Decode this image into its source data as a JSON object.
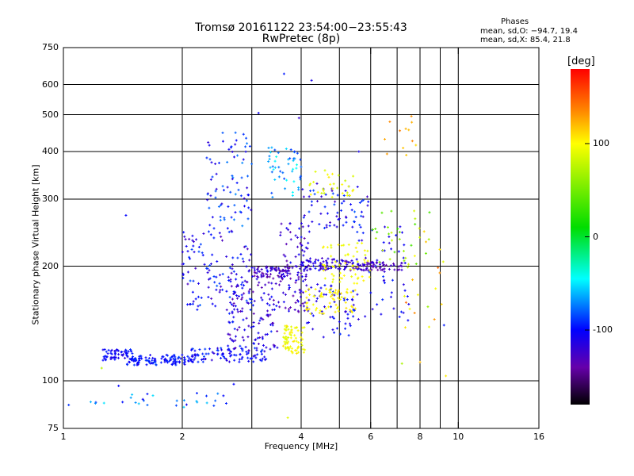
{
  "chart_data": {
    "type": "scatter",
    "title": "Tromsø 20161122 23:54:00−23:55:43",
    "subtitle": "RwPretec (8p)",
    "xlabel": "Frequency [MHz]",
    "ylabel": "Stationary phase Virtual Height [km]",
    "x_scale": "log",
    "y_scale": "log",
    "xlim": [
      1,
      16
    ],
    "ylim": [
      75,
      750
    ],
    "x_ticks": [
      1,
      2,
      4,
      6,
      8,
      10,
      16
    ],
    "x_minor_ticks": [
      3,
      5,
      7,
      9
    ],
    "y_ticks": [
      75,
      100,
      200,
      300,
      400,
      500,
      600,
      750
    ],
    "grid": true,
    "phase_info": {
      "heading": "Phases",
      "line_o": "mean, sd,O: −94.7, 19.4",
      "line_x": "mean, sd,X:  85.4, 21.8"
    },
    "colorbar": {
      "label": "[deg]",
      "range": [
        -180,
        180
      ],
      "ticks": [
        100,
        0,
        -100
      ],
      "colors": [
        "#ff0000",
        "#ff8800",
        "#ffff00",
        "#00dd00",
        "#00ffff",
        "#0000ff",
        "#6600aa",
        "#000000"
      ]
    },
    "clusters": [
      {
        "x": [
          1.03,
          2.62
        ],
        "y": [
          85,
          93
        ],
        "phase": [
          -110,
          -50
        ],
        "n": 30
      },
      {
        "x": [
          1.25,
          1.5
        ],
        "y": [
          113,
          121
        ],
        "phase": [
          -115,
          -90
        ],
        "n": 60
      },
      {
        "x": [
          1.45,
          2.2
        ],
        "y": [
          110,
          117
        ],
        "phase": [
          -110,
          -85
        ],
        "n": 120
      },
      {
        "x": [
          2.1,
          3.3
        ],
        "y": [
          112,
          122
        ],
        "phase": [
          -120,
          -85
        ],
        "n": 90
      },
      {
        "x": [
          2.0,
          3.0
        ],
        "y": [
          150,
          250
        ],
        "phase": [
          -130,
          -80
        ],
        "n": 120
      },
      {
        "x": [
          2.3,
          3.0
        ],
        "y": [
          250,
          450
        ],
        "phase": [
          -120,
          -70
        ],
        "n": 80
      },
      {
        "x": [
          2.6,
          3.5
        ],
        "y": [
          120,
          200
        ],
        "phase": [
          -140,
          -90
        ],
        "n": 140
      },
      {
        "x": [
          3.0,
          3.9
        ],
        "y": [
          185,
          200
        ],
        "phase": [
          -150,
          -110
        ],
        "n": 70
      },
      {
        "x": [
          3.3,
          4.0
        ],
        "y": [
          300,
          410
        ],
        "phase": [
          -90,
          -40
        ],
        "n": 50
      },
      {
        "x": [
          3.5,
          4.2
        ],
        "y": [
          150,
          260
        ],
        "phase": [
          -140,
          -100
        ],
        "n": 100
      },
      {
        "x": [
          4.0,
          5.6
        ],
        "y": [
          195,
          210
        ],
        "phase": [
          -140,
          -100
        ],
        "n": 90
      },
      {
        "x": [
          4.0,
          6.0
        ],
        "y": [
          250,
          330
        ],
        "phase": [
          -130,
          -80
        ],
        "n": 70
      },
      {
        "x": [
          4.1,
          5.5
        ],
        "y": [
          130,
          180
        ],
        "phase": [
          -120,
          -90
        ],
        "n": 60
      },
      {
        "x": [
          5.5,
          7.2
        ],
        "y": [
          195,
          205
        ],
        "phase": [
          -140,
          -120
        ],
        "n": 60
      },
      {
        "x": [
          5.5,
          7.5
        ],
        "y": [
          140,
          260
        ],
        "phase": [
          -120,
          -90
        ],
        "n": 50
      },
      {
        "x": [
          3.6,
          4.1
        ],
        "y": [
          118,
          140
        ],
        "phase": [
          85,
          110
        ],
        "n": 70
      },
      {
        "x": [
          4.1,
          5.5
        ],
        "y": [
          150,
          175
        ],
        "phase": [
          95,
          110
        ],
        "n": 70
      },
      {
        "x": [
          4.5,
          6.0
        ],
        "y": [
          180,
          230
        ],
        "phase": [
          90,
          105
        ],
        "n": 60
      },
      {
        "x": [
          4.2,
          5.5
        ],
        "y": [
          300,
          360
        ],
        "phase": [
          80,
          110
        ],
        "n": 30
      },
      {
        "x": [
          6.0,
          8.5
        ],
        "y": [
          200,
          290
        ],
        "phase": [
          30,
          90
        ],
        "n": 30
      },
      {
        "x": [
          7.2,
          9.3
        ],
        "y": [
          130,
          250
        ],
        "phase": [
          60,
          150
        ],
        "n": 20
      },
      {
        "x": [
          6.5,
          8.0
        ],
        "y": [
          380,
          500
        ],
        "phase": [
          110,
          140
        ],
        "n": 12
      }
    ],
    "points": [
      {
        "x": 3.62,
        "y": 640,
        "phase": -95
      },
      {
        "x": 4.25,
        "y": 615,
        "phase": -110
      },
      {
        "x": 3.12,
        "y": 505,
        "phase": -105
      },
      {
        "x": 3.95,
        "y": 490,
        "phase": -120
      },
      {
        "x": 1.44,
        "y": 272,
        "phase": -100
      },
      {
        "x": 3.85,
        "y": 400,
        "phase": -95
      },
      {
        "x": 3.7,
        "y": 80,
        "phase": 90
      },
      {
        "x": 5.6,
        "y": 400,
        "phase": -110
      },
      {
        "x": 9.3,
        "y": 103,
        "phase": 105
      },
      {
        "x": 8.0,
        "y": 112,
        "phase": 120
      },
      {
        "x": 7.2,
        "y": 111,
        "phase": 70
      },
      {
        "x": 8.7,
        "y": 145,
        "phase": 130
      },
      {
        "x": 9.2,
        "y": 140,
        "phase": -95
      },
      {
        "x": 1.25,
        "y": 108,
        "phase": 75
      },
      {
        "x": 1.38,
        "y": 97,
        "phase": -100
      },
      {
        "x": 2.7,
        "y": 98,
        "phase": -100
      }
    ]
  }
}
